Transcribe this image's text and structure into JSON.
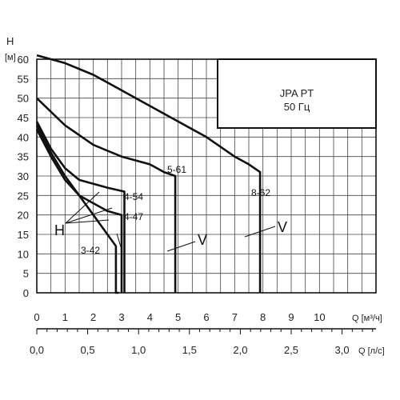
{
  "chart_data": {
    "type": "line",
    "title_box": [
      "JPA PT",
      "50 Гц"
    ],
    "y_axis": {
      "letter": "H",
      "unit": "[м]",
      "min": 0,
      "max": 60,
      "ticks": [
        0,
        5,
        10,
        15,
        20,
        25,
        30,
        35,
        40,
        45,
        50,
        55,
        60
      ]
    },
    "x_axis": {
      "label": "Q [м³/ч]",
      "min": 0,
      "max": 12,
      "ticks": [
        0,
        1,
        2,
        3,
        4,
        5,
        6,
        7,
        8,
        9,
        10
      ],
      "tick_labels": [
        "0",
        "1",
        "2",
        "3",
        "4",
        "5",
        "6",
        "7",
        "8",
        "9",
        "10"
      ]
    },
    "x2_axis": {
      "label": "Q [л/с]",
      "ticks": [
        0.0,
        0.5,
        1.0,
        1.5,
        2.0,
        2.5,
        3.0
      ],
      "tick_labels": [
        "0,0",
        "0,5",
        "1,0",
        "1,5",
        "2,0",
        "2,5",
        "3,0"
      ]
    },
    "grid": true,
    "series": [
      {
        "name": "3-42",
        "x": [
          0,
          0.5,
          1,
          1.5,
          2,
          2.5,
          2.8,
          2.8,
          2.9
        ],
        "y": [
          43,
          36,
          30,
          25,
          20,
          15,
          12,
          0,
          0
        ]
      },
      {
        "name": "4-47",
        "x": [
          0,
          0.5,
          1,
          1.5,
          2,
          2.5,
          3.0,
          3.0
        ],
        "y": [
          42,
          35,
          29,
          25,
          23,
          21,
          20,
          0
        ]
      },
      {
        "name": "4-54",
        "x": [
          0,
          0.5,
          1,
          1.5,
          2,
          2.5,
          3.1,
          3.1
        ],
        "y": [
          44,
          37,
          32,
          29,
          28,
          27,
          26,
          0
        ]
      },
      {
        "name": "5-61",
        "x": [
          0,
          1,
          2,
          3,
          4,
          4.5,
          4.9,
          4.9
        ],
        "y": [
          50,
          43,
          38,
          35,
          33,
          31,
          30,
          0
        ]
      },
      {
        "name": "8-62",
        "x": [
          0,
          1,
          2,
          3,
          4,
          5,
          6,
          7,
          7.5,
          7.9,
          7.9
        ],
        "y": [
          61,
          59,
          56,
          52,
          48,
          44,
          40,
          35,
          33,
          31,
          0
        ]
      }
    ],
    "annotations": [
      "H",
      "V",
      "V"
    ]
  }
}
